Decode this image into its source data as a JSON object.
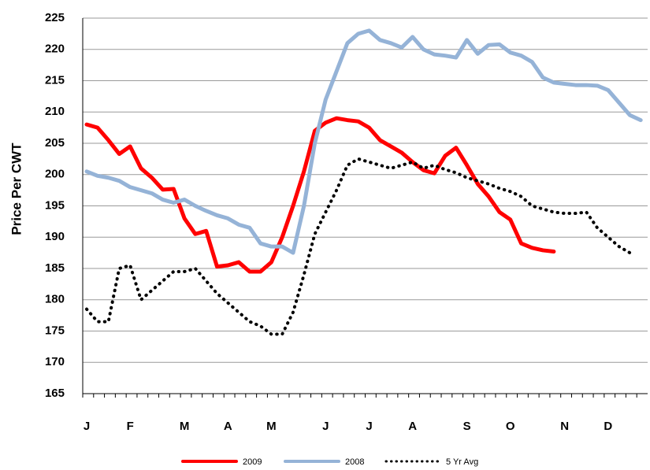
{
  "chart_data": {
    "type": "line",
    "y_label": "Price Per CWT",
    "categories": [
      "J",
      null,
      null,
      null,
      "F",
      null,
      null,
      null,
      null,
      "M",
      null,
      null,
      null,
      "A",
      null,
      null,
      null,
      "M",
      null,
      null,
      null,
      null,
      "J",
      null,
      null,
      null,
      "J",
      null,
      null,
      null,
      "A",
      null,
      null,
      null,
      null,
      "S",
      null,
      null,
      null,
      "O",
      null,
      null,
      null,
      null,
      "N",
      null,
      null,
      null,
      "D",
      null,
      null,
      null
    ],
    "series": [
      {
        "name": "2009",
        "color": "#ff0000",
        "style": "solid",
        "values": [
          208,
          207.5,
          205.5,
          203.3,
          204.5,
          201,
          199.5,
          197.6,
          197.7,
          193,
          190.5,
          191,
          185.3,
          185.5,
          186,
          184.5,
          184.5,
          186,
          190,
          195,
          200.5,
          207,
          208.3,
          209,
          208.7,
          208.5,
          207.5,
          205.5,
          204.5,
          203.5,
          202,
          200.7,
          200.2,
          203,
          204.3,
          201.5,
          198.5,
          196.5,
          194,
          192.8,
          189,
          188.3,
          187.9,
          187.7,
          null,
          null,
          null,
          null,
          null,
          null,
          null,
          null
        ]
      },
      {
        "name": "2008",
        "color": "#95b3d7",
        "style": "solid",
        "values": [
          200.5,
          199.8,
          199.5,
          199,
          198,
          197.5,
          197,
          196,
          195.5,
          196,
          195,
          194.2,
          193.5,
          193,
          192,
          191.5,
          189,
          188.5,
          188.5,
          187.5,
          195,
          205,
          212,
          216.5,
          221,
          222.5,
          223,
          221.5,
          221,
          220.3,
          222,
          220,
          219.2,
          219,
          218.7,
          221.5,
          219.3,
          220.7,
          220.8,
          219.5,
          219,
          218,
          215.5,
          214.7,
          214.5,
          214.3,
          214.3,
          214.2,
          213.5,
          211.5,
          209.5,
          208.7
        ]
      },
      {
        "name": "5 Yr Avg",
        "color": "#000000",
        "style": "dotted",
        "values": [
          178.5,
          176.5,
          176.5,
          185,
          185.5,
          180,
          181.5,
          183,
          184.5,
          184.5,
          185,
          183,
          181,
          179.5,
          178,
          176.5,
          175.8,
          174.5,
          174.5,
          178,
          184,
          190.5,
          194,
          197.5,
          201.5,
          202.5,
          202,
          201.5,
          201,
          201.5,
          202,
          201,
          201.5,
          200.8,
          200.3,
          199.5,
          199,
          198.5,
          197.8,
          197.3,
          196.5,
          195,
          194.5,
          194,
          193.8,
          193.8,
          194,
          191.5,
          190,
          188.5,
          187.5,
          null
        ]
      }
    ],
    "ylim": [
      165,
      225
    ],
    "yticks": [
      165,
      170,
      175,
      180,
      185,
      190,
      195,
      200,
      205,
      210,
      215,
      220,
      225
    ],
    "grid": true,
    "legend": "bottom"
  }
}
